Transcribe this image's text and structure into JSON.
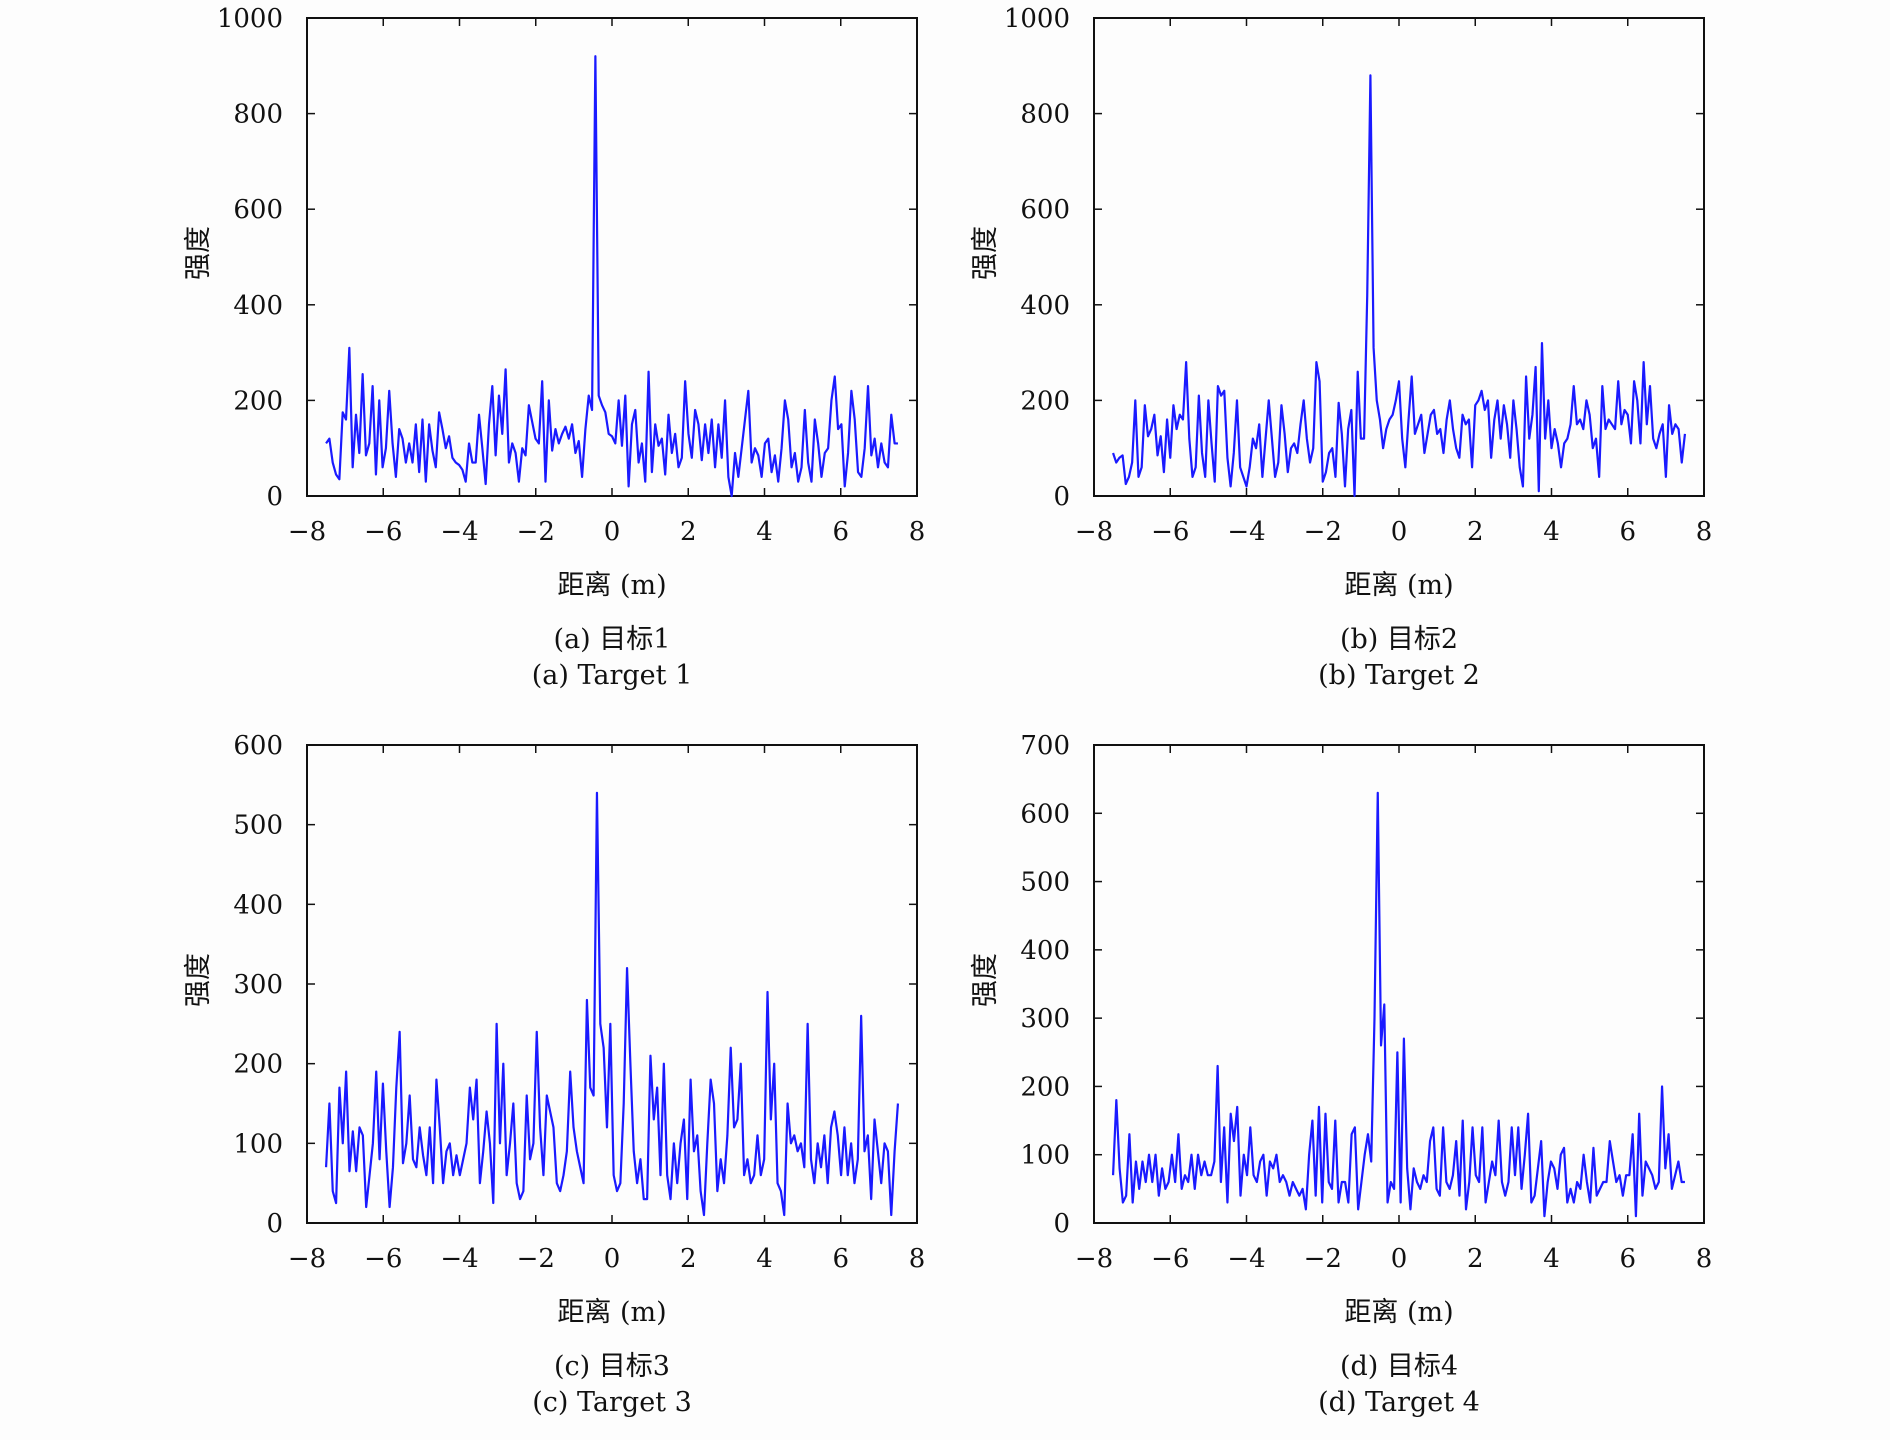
{
  "colors": {
    "line": "#1a1aff",
    "axes": "#111111",
    "background": "#fdfdfd"
  },
  "chart_data": [
    {
      "type": "line",
      "caption_cn": "(a) 目标1",
      "caption_en": "(a) Target 1",
      "xlabel": "距离 (m)",
      "ylabel": "强度",
      "xlim": [
        -8,
        8
      ],
      "ylim": [
        0,
        1000
      ],
      "xticks": [
        "−8",
        "−6",
        "−4",
        "−2",
        "0",
        "2",
        "4",
        "6",
        "8"
      ],
      "yticks": [
        "0",
        "200",
        "400",
        "600",
        "800",
        "1000"
      ],
      "series": [
        {
          "values": [
            110,
            120,
            70,
            45,
            35,
            175,
            160,
            310,
            60,
            170,
            90,
            255,
            85,
            110,
            230,
            45,
            200,
            60,
            100,
            220,
            110,
            40,
            140,
            120,
            70,
            110,
            70,
            150,
            50,
            160,
            30,
            150,
            95,
            60,
            175,
            140,
            100,
            125,
            80,
            70,
            65,
            55,
            30,
            110,
            70,
            70,
            170,
            100,
            25,
            150,
            230,
            85,
            210,
            130,
            265,
            70,
            110,
            90,
            30,
            100,
            85,
            190,
            155,
            120,
            110,
            240,
            30,
            200,
            95,
            140,
            110,
            130,
            145,
            120,
            150,
            90,
            115,
            40,
            140,
            210,
            180,
            920,
            210,
            190,
            175,
            130,
            125,
            110,
            200,
            105,
            210,
            20,
            150,
            180,
            70,
            110,
            30,
            260,
            50,
            150,
            105,
            120,
            45,
            170,
            90,
            130,
            60,
            80,
            240,
            130,
            80,
            180,
            150,
            75,
            150,
            90,
            160,
            60,
            150,
            80,
            200,
            40,
            0,
            90,
            40,
            100,
            160,
            220,
            70,
            100,
            85,
            40,
            110,
            120,
            50,
            85,
            30,
            100,
            200,
            160,
            60,
            90,
            30,
            60,
            180,
            70,
            30,
            160,
            110,
            40,
            90,
            100,
            200,
            250,
            140,
            150,
            20,
            90,
            220,
            160,
            50,
            40,
            100,
            230,
            85,
            120,
            60,
            110,
            70,
            60,
            170,
            110,
            110
          ]
        }
      ]
    },
    {
      "type": "line",
      "caption_cn": "(b) 目标2",
      "caption_en": "(b) Target 2",
      "xlabel": "距离 (m)",
      "ylabel": "强度",
      "xlim": [
        -8,
        8
      ],
      "ylim": [
        0,
        1000
      ],
      "xticks": [
        "−8",
        "−6",
        "−4",
        "−2",
        "0",
        "2",
        "4",
        "6",
        "8"
      ],
      "yticks": [
        "0",
        "200",
        "400",
        "600",
        "800",
        "1000"
      ],
      "series": [
        {
          "values": [
            90,
            70,
            80,
            85,
            25,
            40,
            70,
            200,
            40,
            60,
            190,
            125,
            140,
            170,
            85,
            125,
            50,
            160,
            80,
            190,
            140,
            170,
            160,
            280,
            120,
            40,
            60,
            210,
            90,
            40,
            200,
            110,
            30,
            230,
            210,
            220,
            80,
            20,
            90,
            200,
            60,
            40,
            20,
            60,
            120,
            100,
            150,
            40,
            120,
            200,
            120,
            40,
            70,
            190,
            130,
            50,
            100,
            110,
            90,
            150,
            200,
            120,
            70,
            100,
            280,
            240,
            30,
            50,
            90,
            100,
            40,
            195,
            130,
            20,
            140,
            180,
            0,
            260,
            120,
            120,
            420,
            880,
            310,
            200,
            160,
            100,
            140,
            160,
            170,
            200,
            240,
            120,
            60,
            160,
            250,
            130,
            150,
            170,
            90,
            130,
            170,
            180,
            130,
            140,
            90,
            160,
            200,
            140,
            100,
            80,
            170,
            150,
            160,
            60,
            190,
            200,
            220,
            180,
            200,
            80,
            160,
            200,
            120,
            190,
            150,
            80,
            200,
            140,
            60,
            20,
            250,
            120,
            170,
            270,
            10,
            320,
            120,
            200,
            100,
            140,
            110,
            60,
            110,
            120,
            150,
            230,
            150,
            160,
            140,
            200,
            170,
            100,
            120,
            40,
            230,
            140,
            160,
            150,
            140,
            240,
            150,
            180,
            170,
            110,
            240,
            200,
            110,
            280,
            150,
            230,
            120,
            100,
            130,
            150,
            40,
            190,
            130,
            150,
            140,
            70,
            130
          ]
        }
      ]
    },
    {
      "type": "line",
      "caption_cn": "(c) 目标3",
      "caption_en": "(c) Target 3",
      "xlabel": "距离 (m)",
      "ylabel": "强度",
      "xlim": [
        -8,
        8
      ],
      "ylim": [
        0,
        600
      ],
      "xticks": [
        "−8",
        "−6",
        "−4",
        "−2",
        "0",
        "2",
        "4",
        "6",
        "8"
      ],
      "yticks": [
        "0",
        "100",
        "200",
        "300",
        "400",
        "500",
        "600"
      ],
      "series": [
        {
          "values": [
            70,
            150,
            40,
            25,
            170,
            100,
            190,
            65,
            115,
            65,
            120,
            110,
            20,
            60,
            100,
            190,
            80,
            175,
            90,
            20,
            70,
            170,
            240,
            75,
            100,
            160,
            80,
            70,
            120,
            85,
            60,
            120,
            50,
            180,
            120,
            50,
            90,
            100,
            60,
            85,
            60,
            80,
            100,
            170,
            130,
            180,
            50,
            90,
            140,
            100,
            25,
            250,
            100,
            200,
            60,
            100,
            150,
            50,
            30,
            40,
            160,
            80,
            100,
            240,
            120,
            60,
            160,
            140,
            120,
            50,
            40,
            60,
            90,
            190,
            120,
            90,
            70,
            50,
            280,
            170,
            160,
            540,
            250,
            220,
            120,
            250,
            60,
            40,
            50,
            150,
            320,
            200,
            90,
            50,
            80,
            30,
            30,
            210,
            130,
            170,
            60,
            200,
            60,
            30,
            100,
            50,
            100,
            130,
            30,
            180,
            90,
            110,
            40,
            10,
            100,
            180,
            150,
            40,
            80,
            50,
            110,
            220,
            120,
            130,
            200,
            60,
            80,
            50,
            60,
            110,
            60,
            80,
            290,
            130,
            200,
            50,
            40,
            10,
            150,
            100,
            110,
            90,
            100,
            70,
            250,
            80,
            50,
            100,
            70,
            110,
            50,
            120,
            140,
            110,
            60,
            120,
            60,
            100,
            50,
            80,
            260,
            90,
            110,
            30,
            130,
            90,
            50,
            100,
            90,
            10,
            90,
            150
          ]
        }
      ]
    },
    {
      "type": "line",
      "caption_cn": "(d) 目标4",
      "caption_en": "(d) Target 4",
      "xlabel": "距离 (m)",
      "ylabel": "强度",
      "xlim": [
        -8,
        8
      ],
      "ylim": [
        0,
        700
      ],
      "xticks": [
        "−8",
        "−6",
        "−4",
        "−2",
        "0",
        "2",
        "4",
        "6",
        "8"
      ],
      "yticks": [
        "0",
        "100",
        "200",
        "300",
        "400",
        "500",
        "600",
        "700"
      ],
      "series": [
        {
          "values": [
            70,
            180,
            80,
            30,
            40,
            130,
            30,
            90,
            50,
            90,
            60,
            100,
            60,
            100,
            40,
            80,
            50,
            60,
            100,
            60,
            130,
            50,
            70,
            60,
            100,
            50,
            100,
            70,
            90,
            70,
            70,
            90,
            230,
            60,
            140,
            30,
            160,
            120,
            170,
            40,
            100,
            70,
            140,
            70,
            60,
            90,
            100,
            40,
            90,
            80,
            100,
            60,
            70,
            60,
            40,
            60,
            50,
            40,
            50,
            20,
            100,
            150,
            40,
            170,
            30,
            160,
            60,
            50,
            150,
            30,
            60,
            60,
            30,
            130,
            140,
            20,
            60,
            100,
            130,
            90,
            300,
            630,
            260,
            320,
            30,
            60,
            50,
            250,
            30,
            270,
            80,
            20,
            80,
            60,
            50,
            70,
            60,
            120,
            140,
            50,
            40,
            140,
            60,
            50,
            70,
            120,
            40,
            150,
            20,
            60,
            140,
            70,
            60,
            140,
            30,
            60,
            90,
            70,
            150,
            60,
            40,
            60,
            140,
            70,
            140,
            50,
            100,
            160,
            30,
            40,
            80,
            120,
            10,
            60,
            90,
            80,
            50,
            100,
            110,
            30,
            50,
            30,
            60,
            50,
            100,
            60,
            30,
            110,
            40,
            50,
            60,
            60,
            120,
            90,
            60,
            70,
            40,
            70,
            70,
            130,
            10,
            160,
            40,
            90,
            80,
            70,
            50,
            60,
            200,
            80,
            130,
            50,
            70,
            90,
            60,
            60
          ]
        }
      ]
    }
  ]
}
